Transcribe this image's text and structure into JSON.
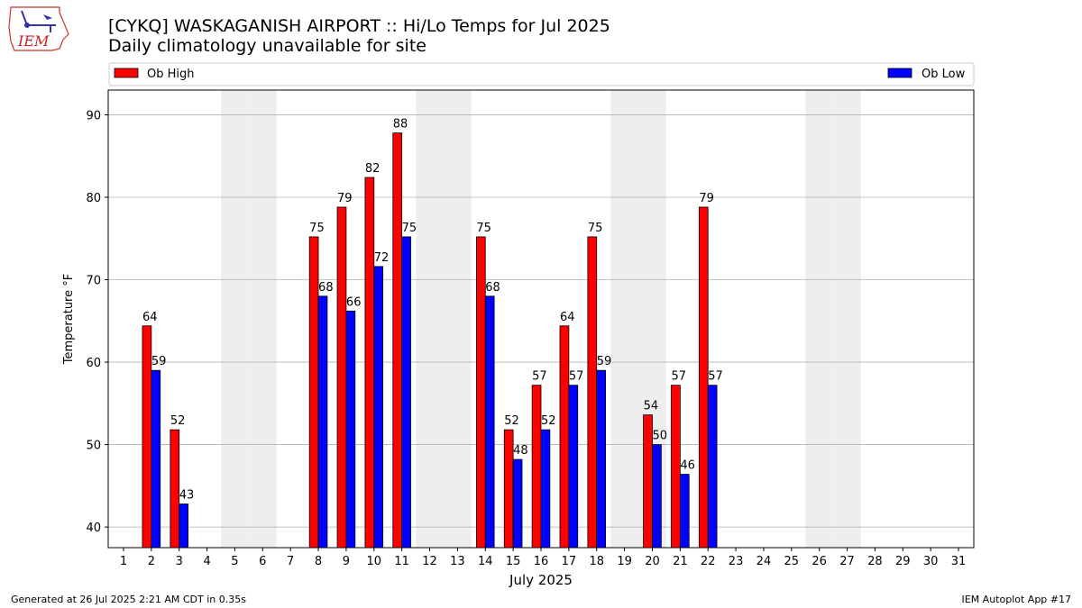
{
  "header": {
    "title": "[CYKQ] WASKAGANISH AIRPORT :: Hi/Lo Temps for Jul 2025",
    "subtitle": "Daily climatology unavailable for site",
    "logo_text": "IEM"
  },
  "footer": {
    "generated": "Generated at 26 Jul 2025 2:21 AM CDT in 0.35s",
    "app": "IEM Autoplot App #17"
  },
  "colors": {
    "high": "#ff0000",
    "low": "#0000ff",
    "weekend_band": "#eeeeee",
    "grid": "#b0b0b0"
  },
  "chart_data": {
    "type": "bar",
    "title": "[CYKQ] WASKAGANISH AIRPORT :: Hi/Lo Temps for Jul 2025",
    "subtitle": "Daily climatology unavailable for site",
    "xlabel": "July 2025",
    "ylabel": "Temperature °F",
    "ylim": [
      37.5,
      93
    ],
    "yticks": [
      40,
      50,
      60,
      70,
      80,
      90
    ],
    "grid": "horizontal",
    "legend": [
      "top-left: Ob High",
      "top-right: Ob Low"
    ],
    "categories": [
      "1",
      "2",
      "3",
      "4",
      "5",
      "6",
      "7",
      "8",
      "9",
      "10",
      "11",
      "12",
      "13",
      "14",
      "15",
      "16",
      "17",
      "18",
      "19",
      "20",
      "21",
      "22",
      "23",
      "24",
      "25",
      "26",
      "27",
      "28",
      "29",
      "30",
      "31"
    ],
    "weekend_days": [
      5,
      6,
      12,
      13,
      19,
      20,
      26,
      27
    ],
    "series": [
      {
        "name": "Ob High",
        "values": [
          null,
          64.4,
          51.8,
          null,
          null,
          null,
          null,
          75.2,
          78.8,
          82.4,
          87.8,
          null,
          null,
          75.2,
          51.8,
          57.2,
          64.4,
          75.2,
          null,
          53.6,
          57.2,
          78.8,
          null,
          null,
          null,
          null,
          null,
          null,
          null,
          null,
          null
        ],
        "labels": [
          "",
          "64",
          "52",
          "",
          "",
          "",
          "",
          "75",
          "79",
          "82",
          "88",
          "",
          "",
          "75",
          "52",
          "57",
          "64",
          "75",
          "",
          "54",
          "57",
          "79",
          "",
          "",
          "",
          "",
          "",
          "",
          "",
          "",
          ""
        ]
      },
      {
        "name": "Ob Low",
        "values": [
          null,
          59.0,
          42.8,
          null,
          null,
          null,
          null,
          68.0,
          66.2,
          71.6,
          75.2,
          null,
          null,
          68.0,
          48.2,
          51.8,
          57.2,
          59.0,
          null,
          50.0,
          46.4,
          57.2,
          null,
          null,
          null,
          null,
          null,
          null,
          null,
          null,
          null
        ],
        "labels": [
          "",
          "59",
          "43",
          "",
          "",
          "",
          "",
          "68",
          "66",
          "72",
          "75",
          "",
          "",
          "68",
          "48",
          "52",
          "57",
          "59",
          "",
          "50",
          "46",
          "57",
          "",
          "",
          "",
          "",
          "",
          "",
          "",
          "",
          ""
        ]
      }
    ]
  }
}
